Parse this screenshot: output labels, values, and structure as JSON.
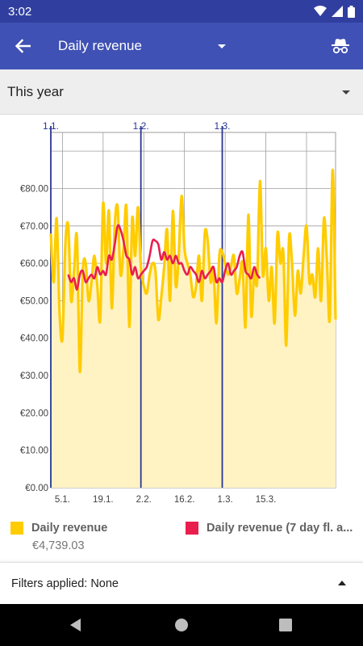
{
  "status_bar": {
    "time": "3:02",
    "icons": [
      "wifi-icon",
      "signal-icon",
      "battery-icon"
    ]
  },
  "app_bar": {
    "title": "Daily revenue",
    "back_icon": "arrow-back-icon",
    "action_icon": "incognito-icon",
    "color": "#3f51b5",
    "status_color": "#303f9f"
  },
  "period_selector": {
    "value": "This year"
  },
  "chart_data": {
    "type": "line",
    "title": "",
    "xlabel": "",
    "ylabel": "",
    "x_tick_labels": [
      "5.1.",
      "19.1.",
      "2.2.",
      "16.2.",
      "1.3.",
      "15.3."
    ],
    "month_markers": [
      "1.1.",
      "1.2.",
      "1.3."
    ],
    "y_tick_labels": [
      "€0.00",
      "€10.00",
      "€20.00",
      "€30.00",
      "€40.00",
      "€50.00",
      "€60.00",
      "€70.00",
      "€80.00"
    ],
    "ylim": [
      0,
      95
    ],
    "grid": true,
    "series": [
      {
        "name": "Daily revenue",
        "color": "#ffcc00",
        "fill": "#fff3c4",
        "style": "area",
        "values": [
          68,
          55,
          72,
          47,
          40,
          65,
          70,
          50,
          58,
          67,
          31,
          58,
          60,
          50,
          55,
          62,
          54,
          45,
          76,
          60,
          74,
          48,
          70,
          75,
          57,
          64,
          75,
          43,
          72,
          62,
          75,
          59,
          54,
          52,
          57,
          60,
          58,
          45,
          51,
          59,
          69,
          50,
          74,
          54,
          62,
          78,
          64,
          60,
          57,
          51,
          54,
          62,
          50,
          68,
          66,
          55,
          58,
          44,
          62,
          63,
          60,
          57,
          59,
          62,
          52,
          56,
          60,
          43,
          73,
          46,
          58,
          55,
          82,
          57,
          64,
          50,
          59,
          44,
          68,
          60,
          63,
          38,
          67,
          60,
          46,
          58,
          52,
          62,
          70,
          55,
          57,
          51,
          64,
          50,
          72,
          61,
          45,
          85,
          45
        ]
      },
      {
        "name": "Daily revenue (7 day fl. a...",
        "color": "#e91e4d",
        "style": "line",
        "start_index": 6,
        "values": [
          57,
          55,
          56,
          53,
          57,
          58,
          55,
          56,
          57,
          56,
          59,
          57,
          58,
          57,
          62,
          61,
          65,
          70,
          69,
          66,
          62,
          61,
          57,
          59,
          56,
          57,
          58,
          59,
          62,
          66,
          66,
          65,
          61,
          63,
          61,
          62,
          60,
          62,
          60,
          60,
          58,
          57,
          59,
          58,
          57,
          55,
          58,
          56,
          57,
          58,
          59,
          55,
          56,
          55,
          58,
          60,
          57,
          58,
          59,
          62,
          63,
          58,
          57,
          56,
          59,
          57,
          56
        ]
      }
    ]
  },
  "legend": {
    "total": "€4,739.03"
  },
  "filters": {
    "label": "Filters applied: None"
  },
  "nav_bar": {
    "icons": [
      "back-triangle-icon",
      "home-circle-icon",
      "recents-square-icon"
    ]
  }
}
